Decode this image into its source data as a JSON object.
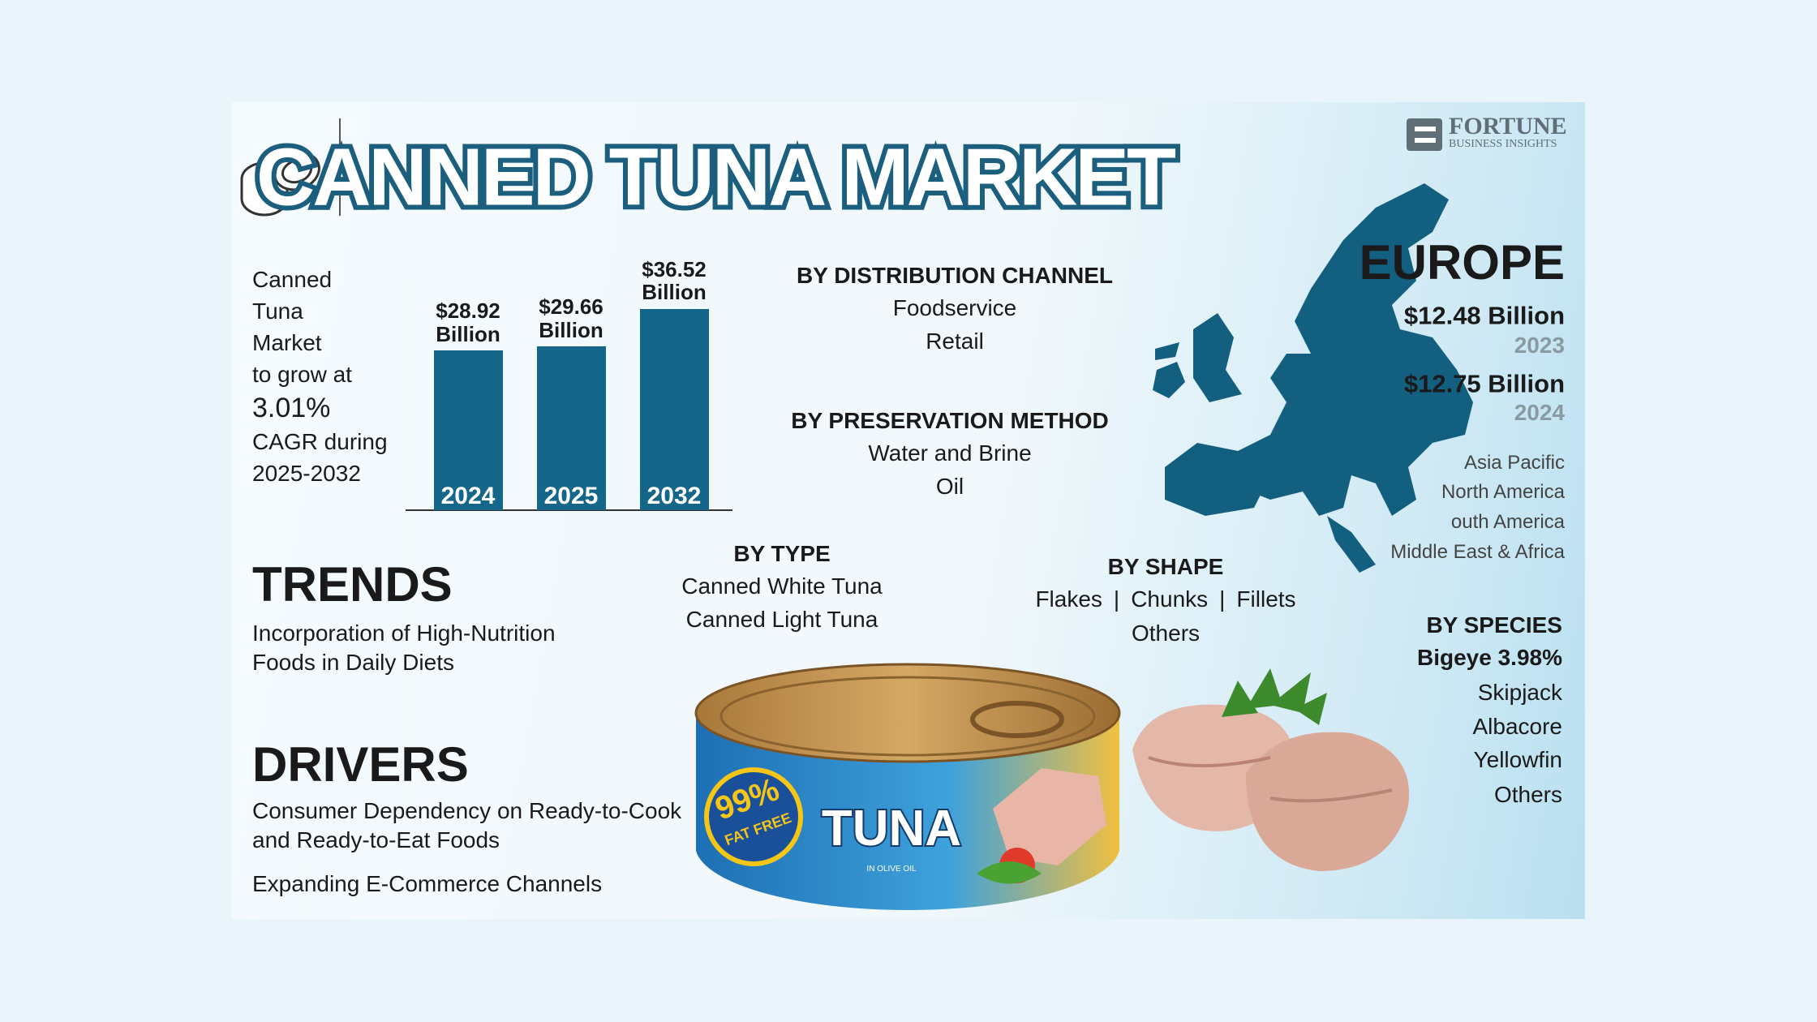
{
  "header": {
    "title": "CANNED TUNA MARKET",
    "logo": {
      "name": "FORTUNE",
      "tagline": "BUSINESS INSIGHTS"
    }
  },
  "growth": {
    "lines": [
      "Canned",
      "Tuna",
      "Market",
      "to grow at"
    ],
    "cagr": "3.01%",
    "lines_after": [
      "CAGR during",
      "2025-2032"
    ]
  },
  "chart_data": {
    "type": "bar",
    "categories": [
      "2024",
      "2025",
      "2032"
    ],
    "values": [
      28.92,
      29.66,
      36.52
    ],
    "value_labels": [
      "$28.92 Billion",
      "$29.66 Billion",
      "$36.52 Billion"
    ],
    "color": "#15678a"
  },
  "distribution_channel": {
    "title": "BY DISTRIBUTION CHANNEL",
    "items": [
      "Foodservice",
      "Retail"
    ]
  },
  "preservation_method": {
    "title": "BY PRESERVATION METHOD",
    "items": [
      "Water and Brine",
      "Oil"
    ]
  },
  "type": {
    "title": "BY TYPE",
    "items": [
      "Canned White Tuna",
      "Canned Light Tuna"
    ]
  },
  "shape": {
    "title": "BY SHAPE",
    "items": [
      "Flakes",
      "Chunks",
      "Fillets",
      "Others"
    ]
  },
  "europe": {
    "title": "EUROPE",
    "stats": [
      {
        "value": "$12.48 Billion",
        "year": "2023"
      },
      {
        "value": "$12.75 Billion",
        "year": "2024"
      }
    ],
    "other_regions": [
      "Asia Pacific",
      "North America",
      "outh America",
      "Middle East & Africa"
    ]
  },
  "species": {
    "title": "BY SPECIES",
    "items": [
      "Bigeye 3.98%",
      "Skipjack",
      "Albacore",
      "Yellowfin",
      "Others"
    ]
  },
  "trends": {
    "title": "TRENDS",
    "items": [
      "Incorporation of High-Nutrition Foods in Daily Diets"
    ]
  },
  "drivers": {
    "title": "DRIVERS",
    "items": [
      "Consumer Dependency on Ready-to-Cook and Ready-to-Eat Foods",
      "Expanding E-Commerce Channels"
    ]
  },
  "can_label": {
    "badge": "99%",
    "badge_sub": "FAT FREE",
    "brand": "TUNA",
    "sub": "IN OLIVE OIL"
  }
}
